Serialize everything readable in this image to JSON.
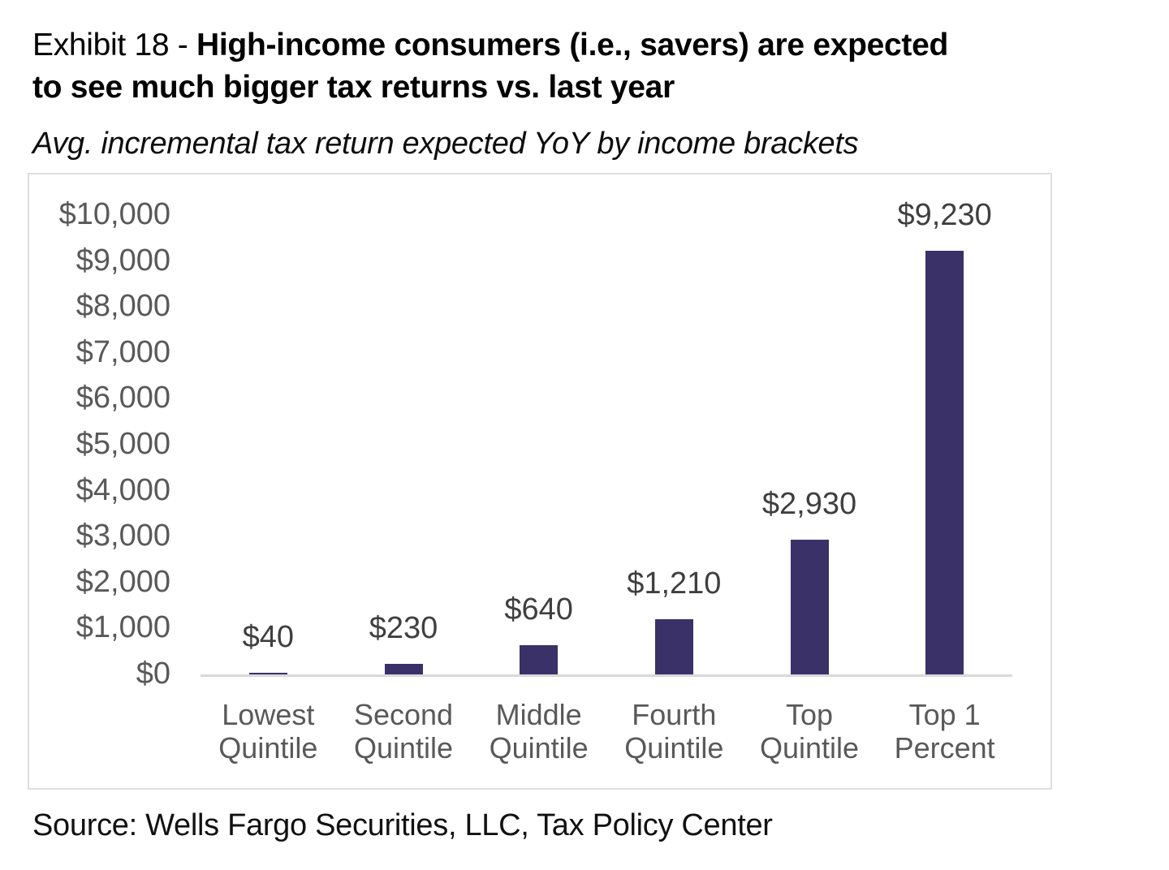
{
  "header": {
    "exhibit_label": "Exhibit 18 - ",
    "title_bold_line1": "High-income consumers (i.e., savers) are expected",
    "title_bold_line2": "to see much bigger tax returns vs. last year",
    "subtitle": "Avg. incremental tax return expected YoY by income brackets"
  },
  "footer": {
    "source": "Source: Wells Fargo Securities, LLC, Tax Policy Center"
  },
  "colors": {
    "bar": "#3A3168",
    "axis_label": "#595959",
    "data_label": "#3F3F3F",
    "category_label": "#595959",
    "axis_line": "#D9D9D9",
    "panel_border": "#DEDEDE"
  },
  "chart_data": {
    "type": "bar",
    "title": "Exhibit 18 - High-income consumers (i.e., savers) are expected to see much bigger tax returns vs. last year",
    "subtitle": "Avg. incremental tax return expected YoY by income brackets",
    "categories": [
      "Lowest Quintile",
      "Second Quintile",
      "Middle Quintile",
      "Fourth Quintile",
      "Top Quintile",
      "Top 1 Percent"
    ],
    "category_lines": [
      [
        "Lowest",
        "Quintile"
      ],
      [
        "Second",
        "Quintile"
      ],
      [
        "Middle",
        "Quintile"
      ],
      [
        "Fourth",
        "Quintile"
      ],
      [
        "Top",
        "Quintile"
      ],
      [
        "Top 1",
        "Percent"
      ]
    ],
    "values": [
      40,
      230,
      640,
      1210,
      2930,
      9230
    ],
    "data_labels": [
      "$40",
      "$230",
      "$640",
      "$1,210",
      "$2,930",
      "$9,230"
    ],
    "xlabel": "",
    "ylabel": "",
    "ylim": [
      0,
      10000
    ],
    "y_tick_values": [
      0,
      1000,
      2000,
      3000,
      4000,
      5000,
      6000,
      7000,
      8000,
      9000,
      10000
    ],
    "y_tick_labels": [
      "$0",
      "$1,000",
      "$2,000",
      "$3,000",
      "$4,000",
      "$5,000",
      "$6,000",
      "$7,000",
      "$8,000",
      "$9,000",
      "$10,000"
    ],
    "grid": false,
    "legend": false,
    "bar_color": "#3A3168",
    "source": "Source: Wells Fargo Securities, LLC, Tax Policy Center"
  }
}
